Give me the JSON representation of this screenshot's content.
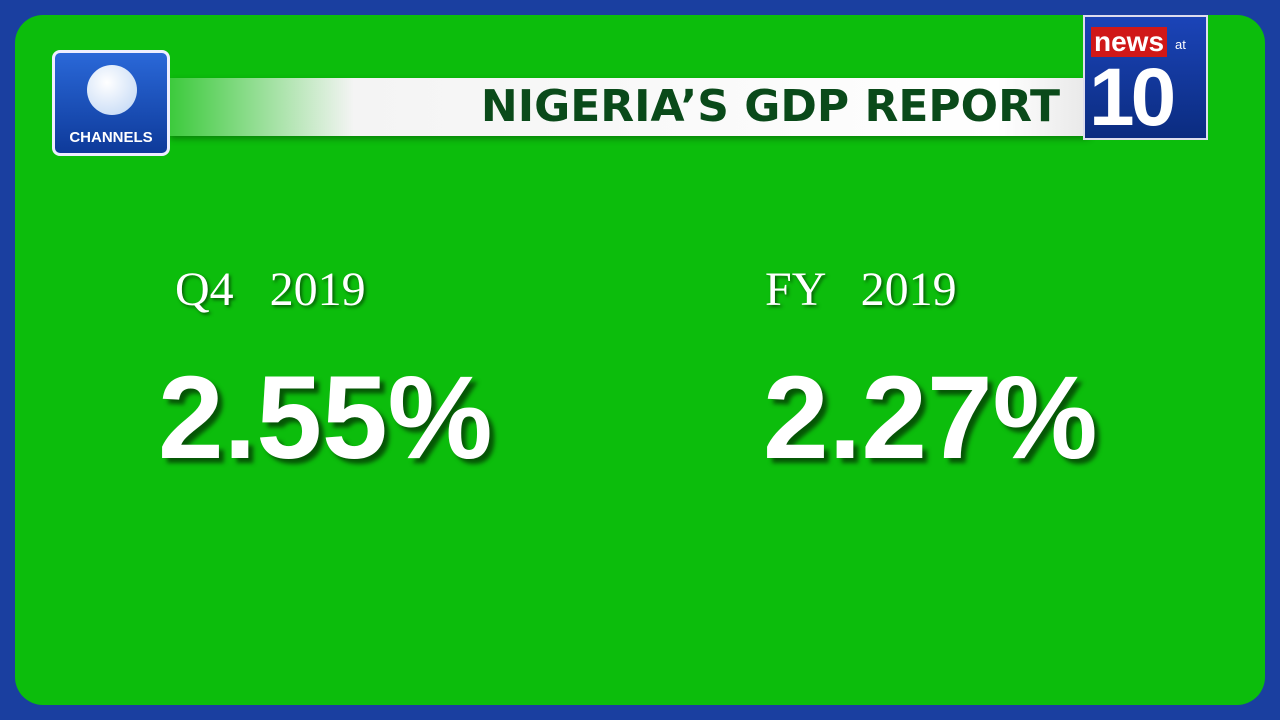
{
  "header": {
    "title": "NIGERIA’S GDP REPORT"
  },
  "channel_logo": {
    "text": "CHANNELS"
  },
  "show_logo": {
    "news": "news",
    "at": "at",
    "number": "10"
  },
  "stats": [
    {
      "period": "Q4   2019",
      "value": "2.55%"
    },
    {
      "period": "FY   2019",
      "value": "2.27%"
    }
  ]
}
